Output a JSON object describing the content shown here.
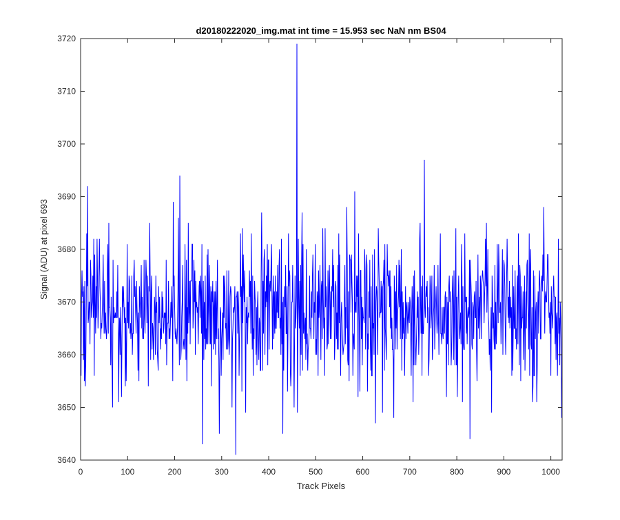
{
  "chart_data": {
    "type": "line",
    "title": "d20180222020_img.mat int time = 15.953 sec  NaN nm BS04",
    "xlabel": "Track Pixels",
    "ylabel": "Signal (ADU) at pixel 693",
    "xlim": [
      0,
      1024
    ],
    "ylim": [
      3640,
      3720
    ],
    "xticks": [
      0,
      100,
      200,
      300,
      400,
      500,
      600,
      700,
      800,
      900,
      1000
    ],
    "yticks": [
      3640,
      3650,
      3660,
      3670,
      3680,
      3690,
      3700,
      3710,
      3720
    ],
    "grid": false,
    "legend": "none",
    "series": [
      {
        "color": "#0000ff",
        "noise": {
          "n_points": 1024,
          "mean": 3668,
          "std": 7.5,
          "min": 3641,
          "max": 3719
        },
        "notable_points": [
          {
            "x": 14,
            "y": 3692
          },
          {
            "x": 210,
            "y": 3694
          },
          {
            "x": 258,
            "y": 3643
          },
          {
            "x": 329,
            "y": 3641
          },
          {
            "x": 459,
            "y": 3719
          },
          {
            "x": 460,
            "y": 3649
          },
          {
            "x": 730,
            "y": 3697
          },
          {
            "x": 827,
            "y": 3644
          }
        ]
      }
    ]
  }
}
